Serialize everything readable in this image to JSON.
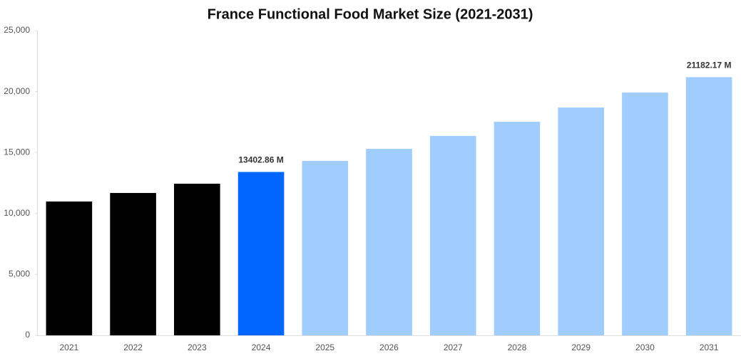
{
  "chart_data": {
    "type": "bar",
    "title": "France Functional Food Market Size (2021-2031)",
    "categories": [
      "2021",
      "2022",
      "2023",
      "2024",
      "2025",
      "2026",
      "2027",
      "2028",
      "2029",
      "2030",
      "2031"
    ],
    "values": [
      10980,
      11680,
      12440,
      13402.86,
      14310,
      15300,
      16360,
      17520,
      18690,
      19920,
      21182.17
    ],
    "value_labels": [
      null,
      null,
      null,
      "13402.86 M",
      null,
      null,
      null,
      null,
      null,
      null,
      "21182.17 M"
    ],
    "colors": [
      "#000000",
      "#000000",
      "#000000",
      "#0066ff",
      "#a0cdfd",
      "#a0cdfd",
      "#a0cdfd",
      "#a0cdfd",
      "#a0cdfd",
      "#a0cdfd",
      "#a0cdfd"
    ],
    "ylim": [
      0,
      25000
    ],
    "yticks": [
      0,
      {
        "value": 5000,
        "label": "5,000"
      },
      {
        "value": 10000,
        "label": "10,000"
      },
      {
        "value": 15000,
        "label": "15,000"
      },
      {
        "value": 20000,
        "label": "20,000"
      },
      {
        "value": 25000,
        "label": "25,000"
      }
    ],
    "grid": false
  }
}
